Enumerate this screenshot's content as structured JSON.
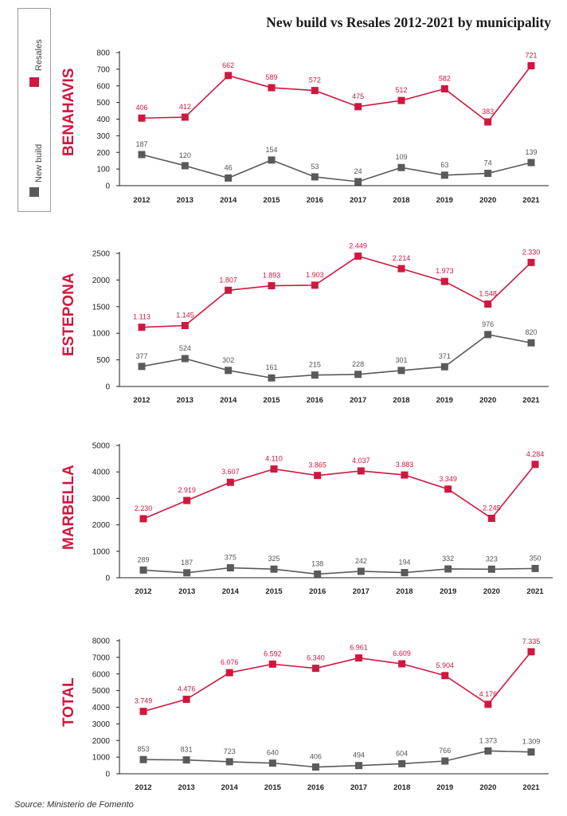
{
  "title": "New build vs Resales 2012-2021 by municipality",
  "source": "Source: Ministerio de Fomento",
  "legend": {
    "resales": "Resales",
    "new_build": "New build",
    "resales_color": "#d0173f",
    "new_build_color": "#5a5a5a"
  },
  "chart_data": [
    {
      "type": "line",
      "title": "BENAHAVIS",
      "x": [
        "2012",
        "2013",
        "2014",
        "2015",
        "2016",
        "2017",
        "2018",
        "2019",
        "2020",
        "2021"
      ],
      "ylim": [
        0,
        800
      ],
      "yticks": [
        0,
        100,
        200,
        300,
        400,
        500,
        600,
        700,
        800
      ],
      "yticklabels": [
        "0",
        "100",
        "200",
        "300",
        "400",
        "500",
        "600",
        "700",
        "800"
      ],
      "series": [
        {
          "name": "Resales",
          "values": [
            406,
            412,
            662,
            589,
            572,
            475,
            512,
            582,
            383,
            721
          ],
          "labels": [
            "406",
            "412",
            "662",
            "589",
            "572",
            "475",
            "512",
            "582",
            "383",
            "721"
          ]
        },
        {
          "name": "New build",
          "values": [
            187,
            120,
            46,
            154,
            53,
            24,
            109,
            63,
            74,
            139
          ],
          "labels": [
            "187",
            "120",
            "46",
            "154",
            "53",
            "24",
            "109",
            "63",
            "74",
            "139"
          ]
        }
      ]
    },
    {
      "type": "line",
      "title": "ESTEPONA",
      "x": [
        "2012",
        "2013",
        "2014",
        "2015",
        "2016",
        "2017",
        "2018",
        "2019",
        "2020",
        "2021"
      ],
      "ylim": [
        0,
        2500
      ],
      "yticks": [
        0,
        500,
        1000,
        1500,
        2000,
        2500
      ],
      "yticklabels": [
        "0",
        "500",
        "1000",
        "1500",
        "2000",
        "2500"
      ],
      "series": [
        {
          "name": "Resales",
          "values": [
            1113,
            1145,
            1807,
            1893,
            1903,
            2449,
            2214,
            1973,
            1548,
            2330
          ],
          "labels": [
            "1.113",
            "1.145",
            "1.807",
            "1.893",
            "1.903",
            "2.449",
            "2.214",
            "1.973",
            "1.548",
            "2.330"
          ]
        },
        {
          "name": "New build",
          "values": [
            377,
            524,
            302,
            161,
            215,
            228,
            301,
            371,
            976,
            820
          ],
          "labels": [
            "377",
            "524",
            "302",
            "161",
            "215",
            "228",
            "301",
            "371",
            "976",
            "820"
          ]
        }
      ]
    },
    {
      "type": "line",
      "title": "MARBELLA",
      "x": [
        "2012",
        "2013",
        "2014",
        "2015",
        "2016",
        "2017",
        "2018",
        "2019",
        "2020",
        "2021"
      ],
      "ylim": [
        0,
        5000
      ],
      "yticks": [
        0,
        1000,
        2000,
        3000,
        4000,
        5000
      ],
      "yticklabels": [
        "0",
        "1000",
        "2000",
        "3000",
        "4000",
        "5000"
      ],
      "series": [
        {
          "name": "Resales",
          "values": [
            2230,
            2919,
            3607,
            4110,
            3865,
            4037,
            3883,
            3349,
            2245,
            4284
          ],
          "labels": [
            "2.230",
            "2.919",
            "3.607",
            "4.110",
            "3.865",
            "4.037",
            "3.883",
            "3.349",
            "2.245",
            "4.284"
          ]
        },
        {
          "name": "New build",
          "values": [
            289,
            187,
            375,
            325,
            138,
            242,
            194,
            332,
            323,
            350
          ],
          "labels": [
            "289",
            "187",
            "375",
            "325",
            "138",
            "242",
            "194",
            "332",
            "323",
            "350"
          ]
        }
      ]
    },
    {
      "type": "line",
      "title": "TOTAL",
      "x": [
        "2012",
        "2013",
        "2014",
        "2015",
        "2016",
        "2017",
        "2018",
        "2019",
        "2020",
        "2021"
      ],
      "ylim": [
        0,
        8000
      ],
      "yticks": [
        0,
        1000,
        2000,
        3000,
        4000,
        5000,
        6000,
        7000,
        8000
      ],
      "yticklabels": [
        "0",
        "1000",
        "2000",
        "3000",
        "4000",
        "5000",
        "6000",
        "7000",
        "8000"
      ],
      "series": [
        {
          "name": "Resales",
          "values": [
            3749,
            4476,
            6076,
            6592,
            6340,
            6961,
            6609,
            5904,
            4176,
            7335
          ],
          "labels": [
            "3.749",
            "4.476",
            "6.076",
            "6.592",
            "6.340",
            "6.961",
            "6.609",
            "5.904",
            "4.176",
            "7.335"
          ]
        },
        {
          "name": "New build",
          "values": [
            853,
            831,
            723,
            640,
            406,
            494,
            604,
            766,
            1373,
            1309
          ],
          "labels": [
            "853",
            "831",
            "723",
            "640",
            "406",
            "494",
            "604",
            "766",
            "1.373",
            "1.309"
          ]
        }
      ]
    }
  ]
}
